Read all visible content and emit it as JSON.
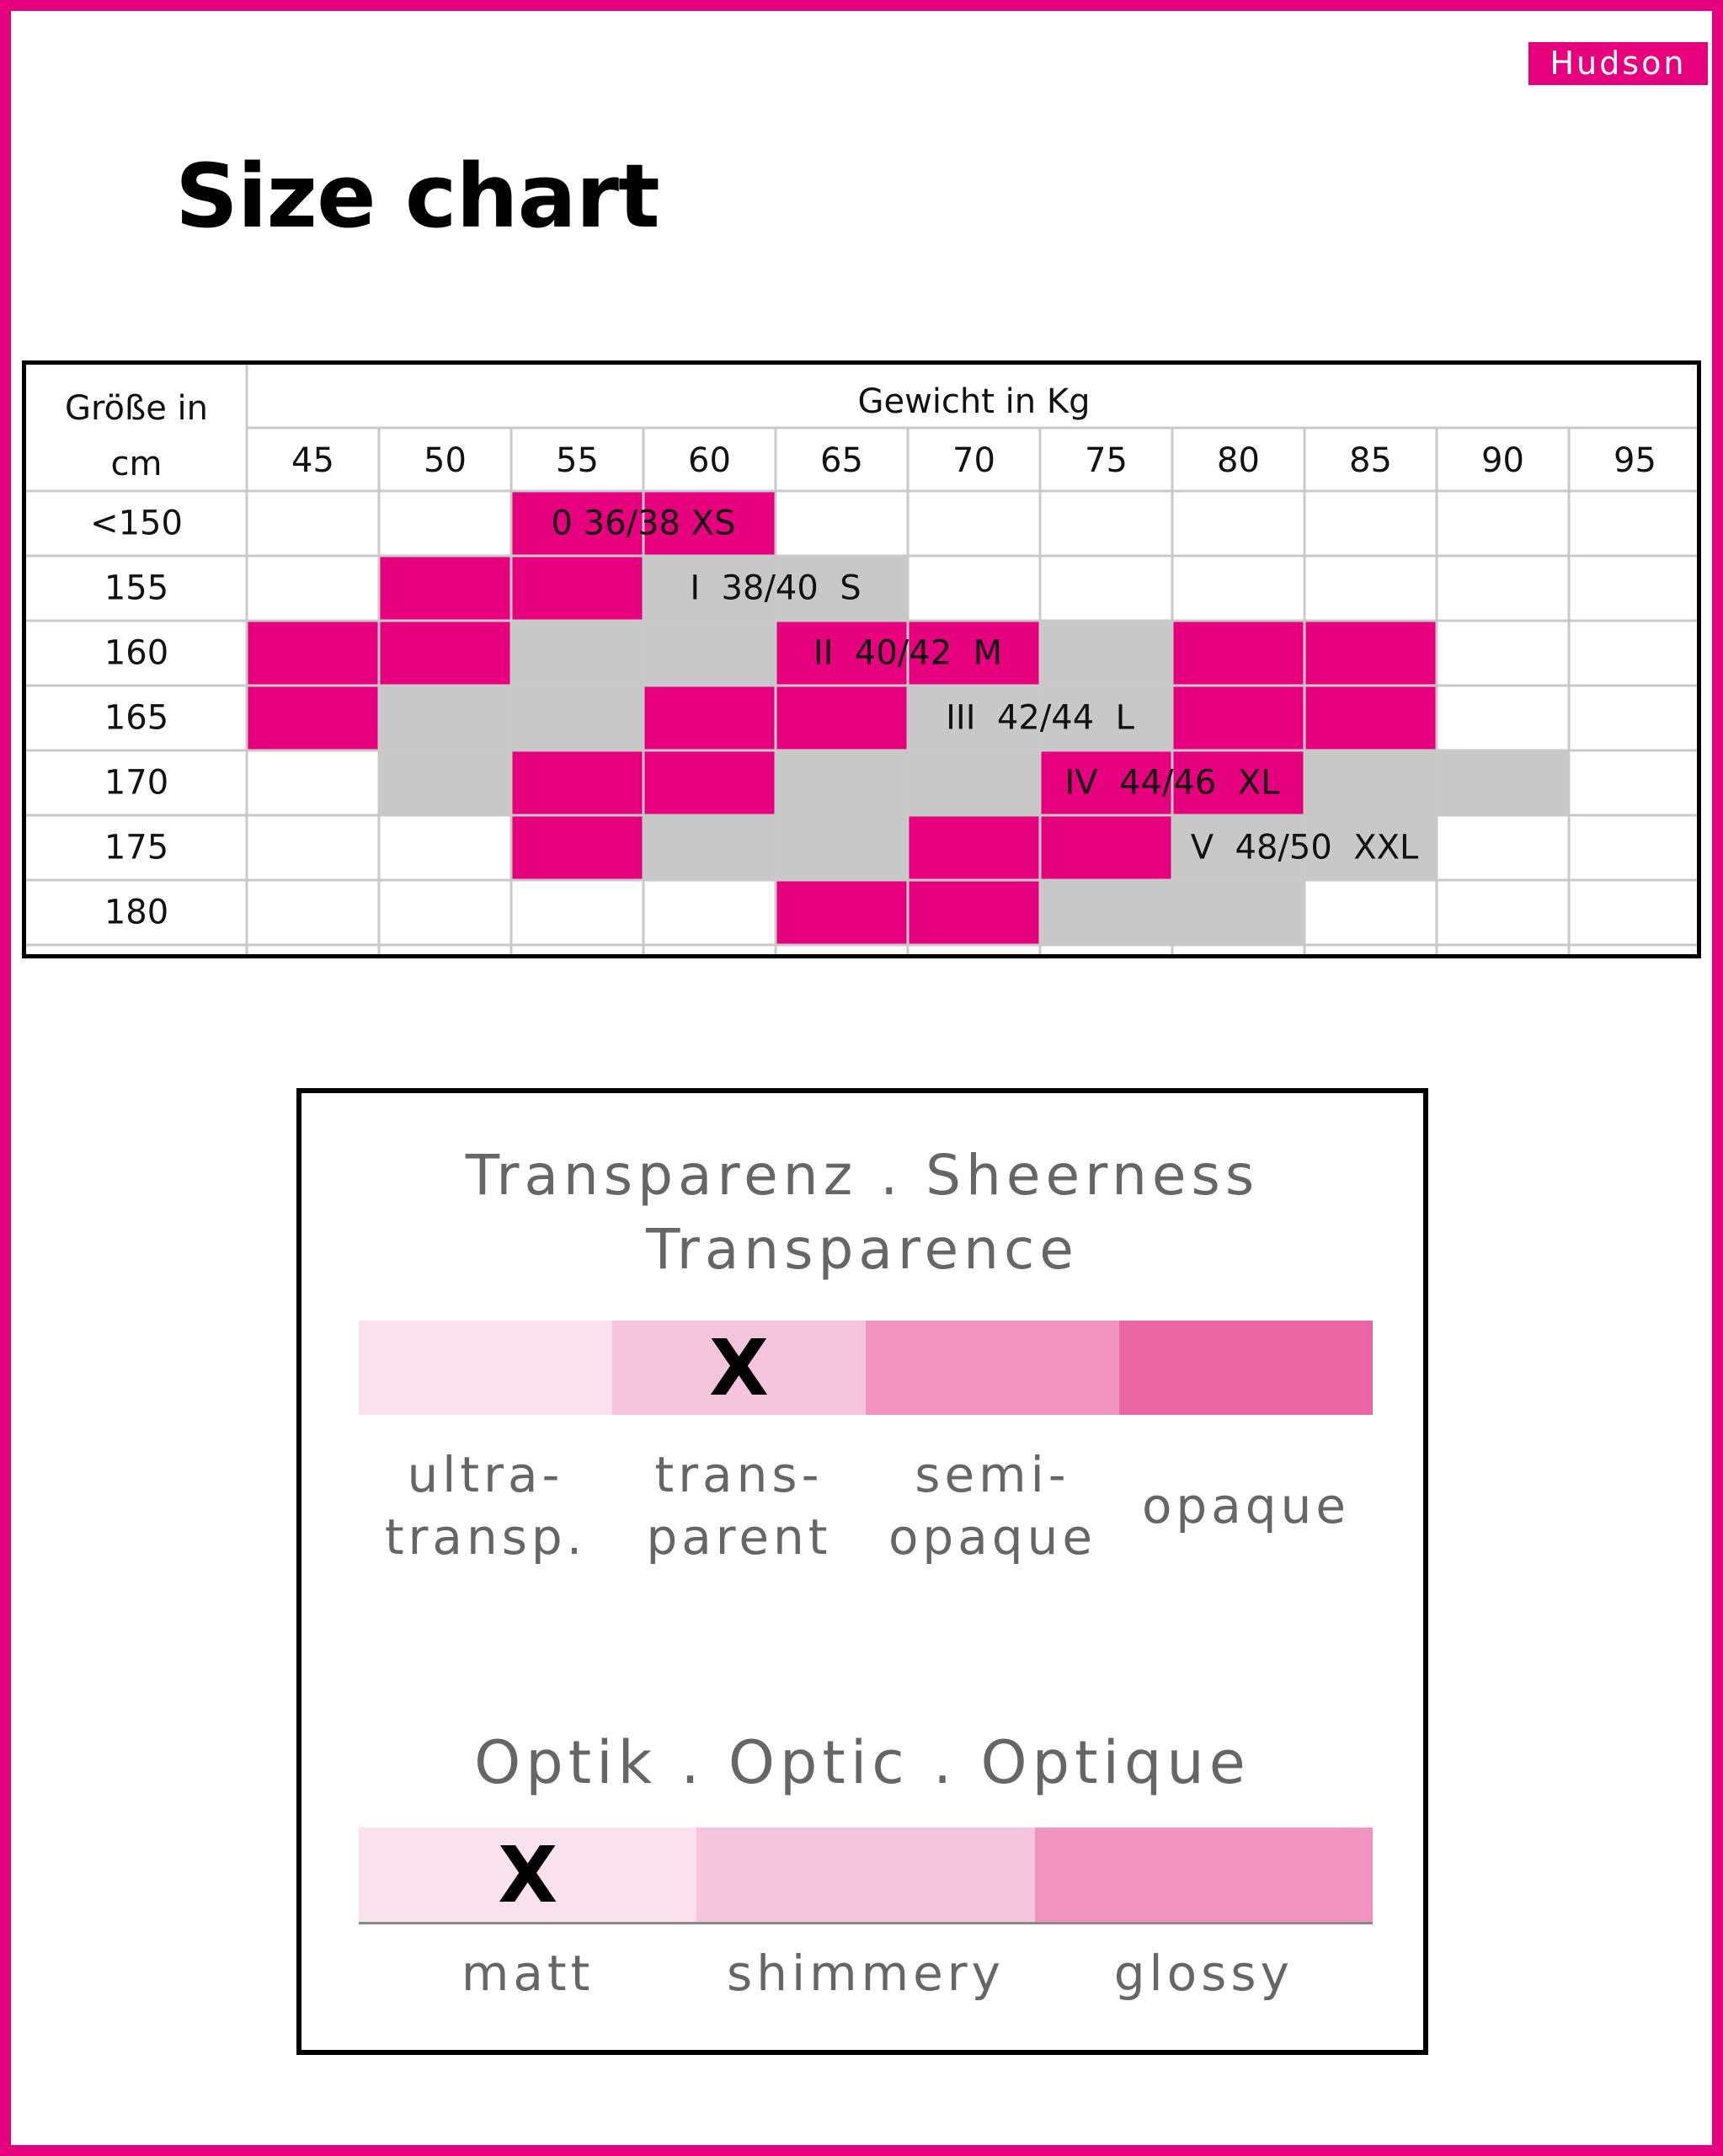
{
  "brand": "Hudson",
  "title": "Size chart",
  "size_table": {
    "corner_label_line1": "Größe in",
    "corner_label_line2": "cm",
    "weight_header": "Gewicht in Kg",
    "weights": [
      "45",
      "50",
      "55",
      "60",
      "65",
      "70",
      "75",
      "80",
      "85",
      "90",
      "95"
    ],
    "heights": [
      "<150",
      "155",
      "160",
      "165",
      "170",
      "175",
      "180"
    ],
    "colors": {
      "pink": "#e6007e",
      "grey": "#c8c8c9",
      "grid": "#c9c9c9"
    },
    "bands": [
      {
        "row": 0,
        "start": 2,
        "end": 4,
        "color": "pink",
        "label": "0 36/38 XS"
      },
      {
        "row": 1,
        "start": 1,
        "end": 3,
        "color": "pink",
        "label": ""
      },
      {
        "row": 1,
        "start": 3,
        "end": 5,
        "color": "grey",
        "label": "I  38/40  S"
      },
      {
        "row": 2,
        "start": 0,
        "end": 2,
        "color": "pink",
        "label": ""
      },
      {
        "row": 2,
        "start": 2,
        "end": 4,
        "color": "grey",
        "label": ""
      },
      {
        "row": 2,
        "start": 4,
        "end": 6,
        "color": "pink",
        "label": "II  40/42  M"
      },
      {
        "row": 2,
        "start": 6,
        "end": 7,
        "color": "grey",
        "label": ""
      },
      {
        "row": 2,
        "start": 7,
        "end": 9,
        "color": "pink",
        "label": ""
      },
      {
        "row": 3,
        "start": 0,
        "end": 1,
        "color": "pink",
        "label": ""
      },
      {
        "row": 3,
        "start": 1,
        "end": 3,
        "color": "grey",
        "label": ""
      },
      {
        "row": 3,
        "start": 3,
        "end": 5,
        "color": "pink",
        "label": ""
      },
      {
        "row": 3,
        "start": 5,
        "end": 7,
        "color": "grey",
        "label": "III  42/44  L"
      },
      {
        "row": 3,
        "start": 7,
        "end": 9,
        "color": "pink",
        "label": ""
      },
      {
        "row": 4,
        "start": 1,
        "end": 2,
        "color": "grey",
        "label": ""
      },
      {
        "row": 4,
        "start": 2,
        "end": 4,
        "color": "pink",
        "label": ""
      },
      {
        "row": 4,
        "start": 4,
        "end": 6,
        "color": "grey",
        "label": ""
      },
      {
        "row": 4,
        "start": 6,
        "end": 8,
        "color": "pink",
        "label": "IV  44/46  XL"
      },
      {
        "row": 4,
        "start": 8,
        "end": 10,
        "color": "grey",
        "label": ""
      },
      {
        "row": 5,
        "start": 2,
        "end": 3,
        "color": "pink",
        "label": ""
      },
      {
        "row": 5,
        "start": 3,
        "end": 5,
        "color": "grey",
        "label": ""
      },
      {
        "row": 5,
        "start": 5,
        "end": 7,
        "color": "pink",
        "label": ""
      },
      {
        "row": 5,
        "start": 7,
        "end": 9,
        "color": "grey",
        "label": "V  48/50  XXL"
      },
      {
        "row": 6,
        "start": 4,
        "end": 6,
        "color": "pink",
        "label": ""
      },
      {
        "row": 6,
        "start": 6,
        "end": 8,
        "color": "grey",
        "label": ""
      }
    ]
  },
  "sheerness": {
    "title_line1": "Transparenz . Sheerness",
    "title_line2": "Transparence",
    "mark": "X",
    "selected_index": 1,
    "segments": [
      {
        "color": "#fae2ed",
        "label_line1": "ultra-",
        "label_line2": "transp."
      },
      {
        "color": "#f5c4dd",
        "label_line1": "trans-",
        "label_line2": "parent"
      },
      {
        "color": "#f093bf",
        "label_line1": "semi-",
        "label_line2": "opaque"
      },
      {
        "color": "#ea65a1",
        "label_line1": "opaque",
        "label_line2": ""
      }
    ]
  },
  "optic": {
    "title": "Optik . Optic . Optique",
    "mark": "X",
    "selected_index": 0,
    "segments": [
      {
        "color": "#fae2ed",
        "label": "matt"
      },
      {
        "color": "#f5c4dd",
        "label": "shimmery"
      },
      {
        "color": "#f093bf",
        "label": "glossy"
      }
    ]
  }
}
